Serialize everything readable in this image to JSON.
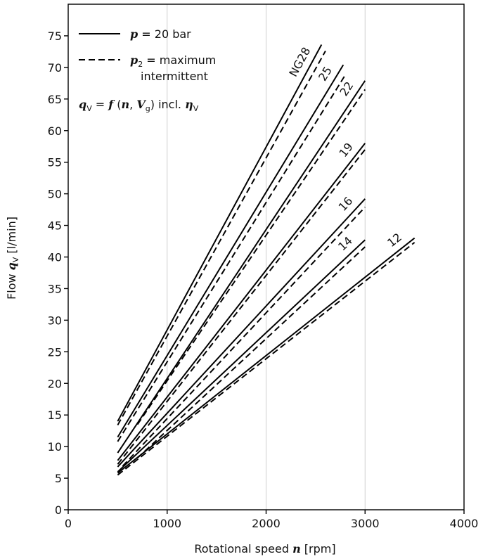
{
  "chart_data": {
    "type": "line",
    "xlabel_prefix": "Rotational speed ",
    "xlabel_var": "n",
    "xlabel_unit": " [rpm]",
    "ylabel_prefix": "Flow ",
    "ylabel_var": "q",
    "ylabel_sub": "V",
    "ylabel_unit": " [l/min]",
    "xlim": [
      0,
      4000
    ],
    "ylim": [
      0,
      80
    ],
    "xticks": [
      "0",
      "1000",
      "2000",
      "3000",
      "4000"
    ],
    "yticks": [
      "0",
      "5",
      "10",
      "15",
      "20",
      "25",
      "30",
      "35",
      "40",
      "45",
      "50",
      "55",
      "60",
      "65",
      "70",
      "75"
    ],
    "grid": "vertical",
    "legend": {
      "placement": "top-left",
      "solid_var": "p",
      "solid_text": " = 20 bar",
      "dashed_var": "p",
      "dashed_sub": "2",
      "dashed_text1": " = maximum",
      "dashed_text2": "intermittent",
      "formula_q": "q",
      "formula_qsub": "V",
      "formula_eq": " = ",
      "formula_f": "f",
      "formula_open": " (",
      "formula_n": "n",
      "formula_comma": ", ",
      "formula_V": "V",
      "formula_Vsub": "g",
      "formula_close": ") incl. ",
      "formula_eta": "η",
      "formula_etasub": "V"
    },
    "series": [
      {
        "name": "NG28",
        "solid": [
          [
            500,
            14
          ],
          [
            2560,
            73.6
          ]
        ],
        "dashed": [
          [
            500,
            13.4
          ],
          [
            2600,
            72.6
          ]
        ]
      },
      {
        "name": "25",
        "solid": [
          [
            500,
            11.5
          ],
          [
            2780,
            70.4
          ]
        ],
        "dashed": [
          [
            500,
            10.8
          ],
          [
            2800,
            68.8
          ]
        ]
      },
      {
        "name": "22",
        "solid": [
          [
            500,
            9.0
          ],
          [
            3000,
            67.9
          ]
        ],
        "dashed": [
          [
            700,
            13.5
          ],
          [
            3000,
            66.5
          ]
        ]
      },
      {
        "name": "19",
        "solid": [
          [
            500,
            7.8
          ],
          [
            3000,
            58
          ]
        ],
        "dashed": [
          [
            500,
            7.2
          ],
          [
            3000,
            57
          ]
        ]
      },
      {
        "name": "16",
        "solid": [
          [
            500,
            6.8
          ],
          [
            3000,
            49.2
          ]
        ],
        "dashed": [
          [
            550,
            6.9
          ],
          [
            3000,
            47.9
          ]
        ]
      },
      {
        "name": "14",
        "solid": [
          [
            500,
            6.0
          ],
          [
            3000,
            42.7
          ]
        ],
        "dashed": [
          [
            700,
            8.2
          ],
          [
            3000,
            41.6
          ]
        ]
      },
      {
        "name": "12",
        "solid": [
          [
            500,
            5.8
          ],
          [
            3500,
            43
          ]
        ],
        "dashed": [
          [
            500,
            5.5
          ],
          [
            3500,
            42.3
          ]
        ]
      }
    ]
  }
}
